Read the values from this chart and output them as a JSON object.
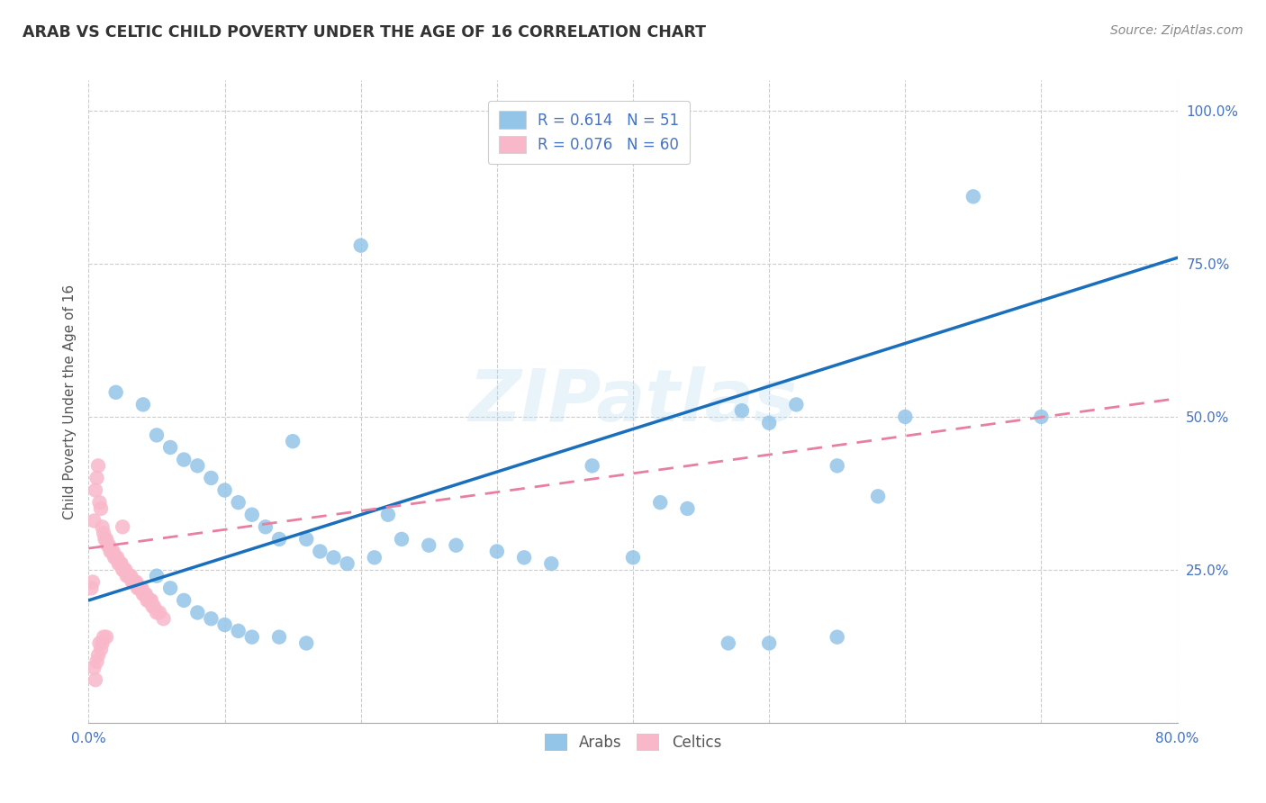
{
  "title": "ARAB VS CELTIC CHILD POVERTY UNDER THE AGE OF 16 CORRELATION CHART",
  "source": "Source: ZipAtlas.com",
  "ylabel": "Child Poverty Under the Age of 16",
  "xlim": [
    0.0,
    0.8
  ],
  "ylim": [
    0.0,
    1.05
  ],
  "xticks": [
    0.0,
    0.1,
    0.2,
    0.3,
    0.4,
    0.5,
    0.6,
    0.7,
    0.8
  ],
  "xticklabels": [
    "0.0%",
    "",
    "",
    "",
    "",
    "",
    "",
    "",
    "80.0%"
  ],
  "ytick_positions": [
    0.0,
    0.25,
    0.5,
    0.75,
    1.0
  ],
  "ytick_labels": [
    "",
    "25.0%",
    "50.0%",
    "75.0%",
    "100.0%"
  ],
  "arab_color": "#93c5e8",
  "celtic_color": "#f9b8ca",
  "arab_R": 0.614,
  "arab_N": 51,
  "celtic_R": 0.076,
  "celtic_N": 60,
  "arab_line_color": "#1a6fbd",
  "celtic_line_color": "#e87fa0",
  "watermark": "ZIPatlas",
  "arab_line_x0": 0.0,
  "arab_line_y0": 0.2,
  "arab_line_x1": 0.8,
  "arab_line_y1": 0.76,
  "celtic_line_x0": 0.0,
  "celtic_line_y0": 0.285,
  "celtic_line_x1": 0.8,
  "celtic_line_y1": 0.53,
  "arab_scatter_x": [
    0.02,
    0.04,
    0.05,
    0.06,
    0.07,
    0.08,
    0.09,
    0.1,
    0.11,
    0.12,
    0.13,
    0.14,
    0.15,
    0.16,
    0.17,
    0.18,
    0.19,
    0.2,
    0.21,
    0.22,
    0.23,
    0.25,
    0.27,
    0.3,
    0.32,
    0.34,
    0.37,
    0.4,
    0.42,
    0.44,
    0.48,
    0.5,
    0.52,
    0.55,
    0.58,
    0.6,
    0.65,
    0.7,
    0.05,
    0.06,
    0.07,
    0.08,
    0.09,
    0.1,
    0.11,
    0.12,
    0.14,
    0.16,
    0.47,
    0.5,
    0.55
  ],
  "arab_scatter_y": [
    0.54,
    0.52,
    0.47,
    0.45,
    0.43,
    0.42,
    0.4,
    0.38,
    0.36,
    0.34,
    0.32,
    0.3,
    0.46,
    0.3,
    0.28,
    0.27,
    0.26,
    0.78,
    0.27,
    0.34,
    0.3,
    0.29,
    0.29,
    0.28,
    0.27,
    0.26,
    0.42,
    0.27,
    0.36,
    0.35,
    0.51,
    0.49,
    0.52,
    0.42,
    0.37,
    0.5,
    0.86,
    0.5,
    0.24,
    0.22,
    0.2,
    0.18,
    0.17,
    0.16,
    0.15,
    0.14,
    0.14,
    0.13,
    0.13,
    0.13,
    0.14
  ],
  "celtic_scatter_x": [
    0.002,
    0.003,
    0.004,
    0.005,
    0.006,
    0.007,
    0.008,
    0.009,
    0.01,
    0.011,
    0.012,
    0.013,
    0.014,
    0.015,
    0.016,
    0.017,
    0.018,
    0.019,
    0.02,
    0.021,
    0.022,
    0.023,
    0.024,
    0.025,
    0.026,
    0.027,
    0.028,
    0.029,
    0.03,
    0.031,
    0.032,
    0.033,
    0.034,
    0.035,
    0.036,
    0.037,
    0.038,
    0.039,
    0.04,
    0.041,
    0.042,
    0.043,
    0.044,
    0.045,
    0.046,
    0.047,
    0.048,
    0.05,
    0.052,
    0.055,
    0.004,
    0.005,
    0.006,
    0.007,
    0.008,
    0.009,
    0.01,
    0.011,
    0.013,
    0.025
  ],
  "celtic_scatter_y": [
    0.22,
    0.23,
    0.33,
    0.38,
    0.4,
    0.42,
    0.36,
    0.35,
    0.32,
    0.31,
    0.3,
    0.3,
    0.29,
    0.29,
    0.28,
    0.28,
    0.28,
    0.27,
    0.27,
    0.27,
    0.26,
    0.26,
    0.26,
    0.25,
    0.25,
    0.25,
    0.24,
    0.24,
    0.24,
    0.24,
    0.23,
    0.23,
    0.23,
    0.23,
    0.22,
    0.22,
    0.22,
    0.22,
    0.21,
    0.21,
    0.21,
    0.2,
    0.2,
    0.2,
    0.2,
    0.19,
    0.19,
    0.18,
    0.18,
    0.17,
    0.09,
    0.07,
    0.1,
    0.11,
    0.13,
    0.12,
    0.13,
    0.14,
    0.14,
    0.32
  ]
}
